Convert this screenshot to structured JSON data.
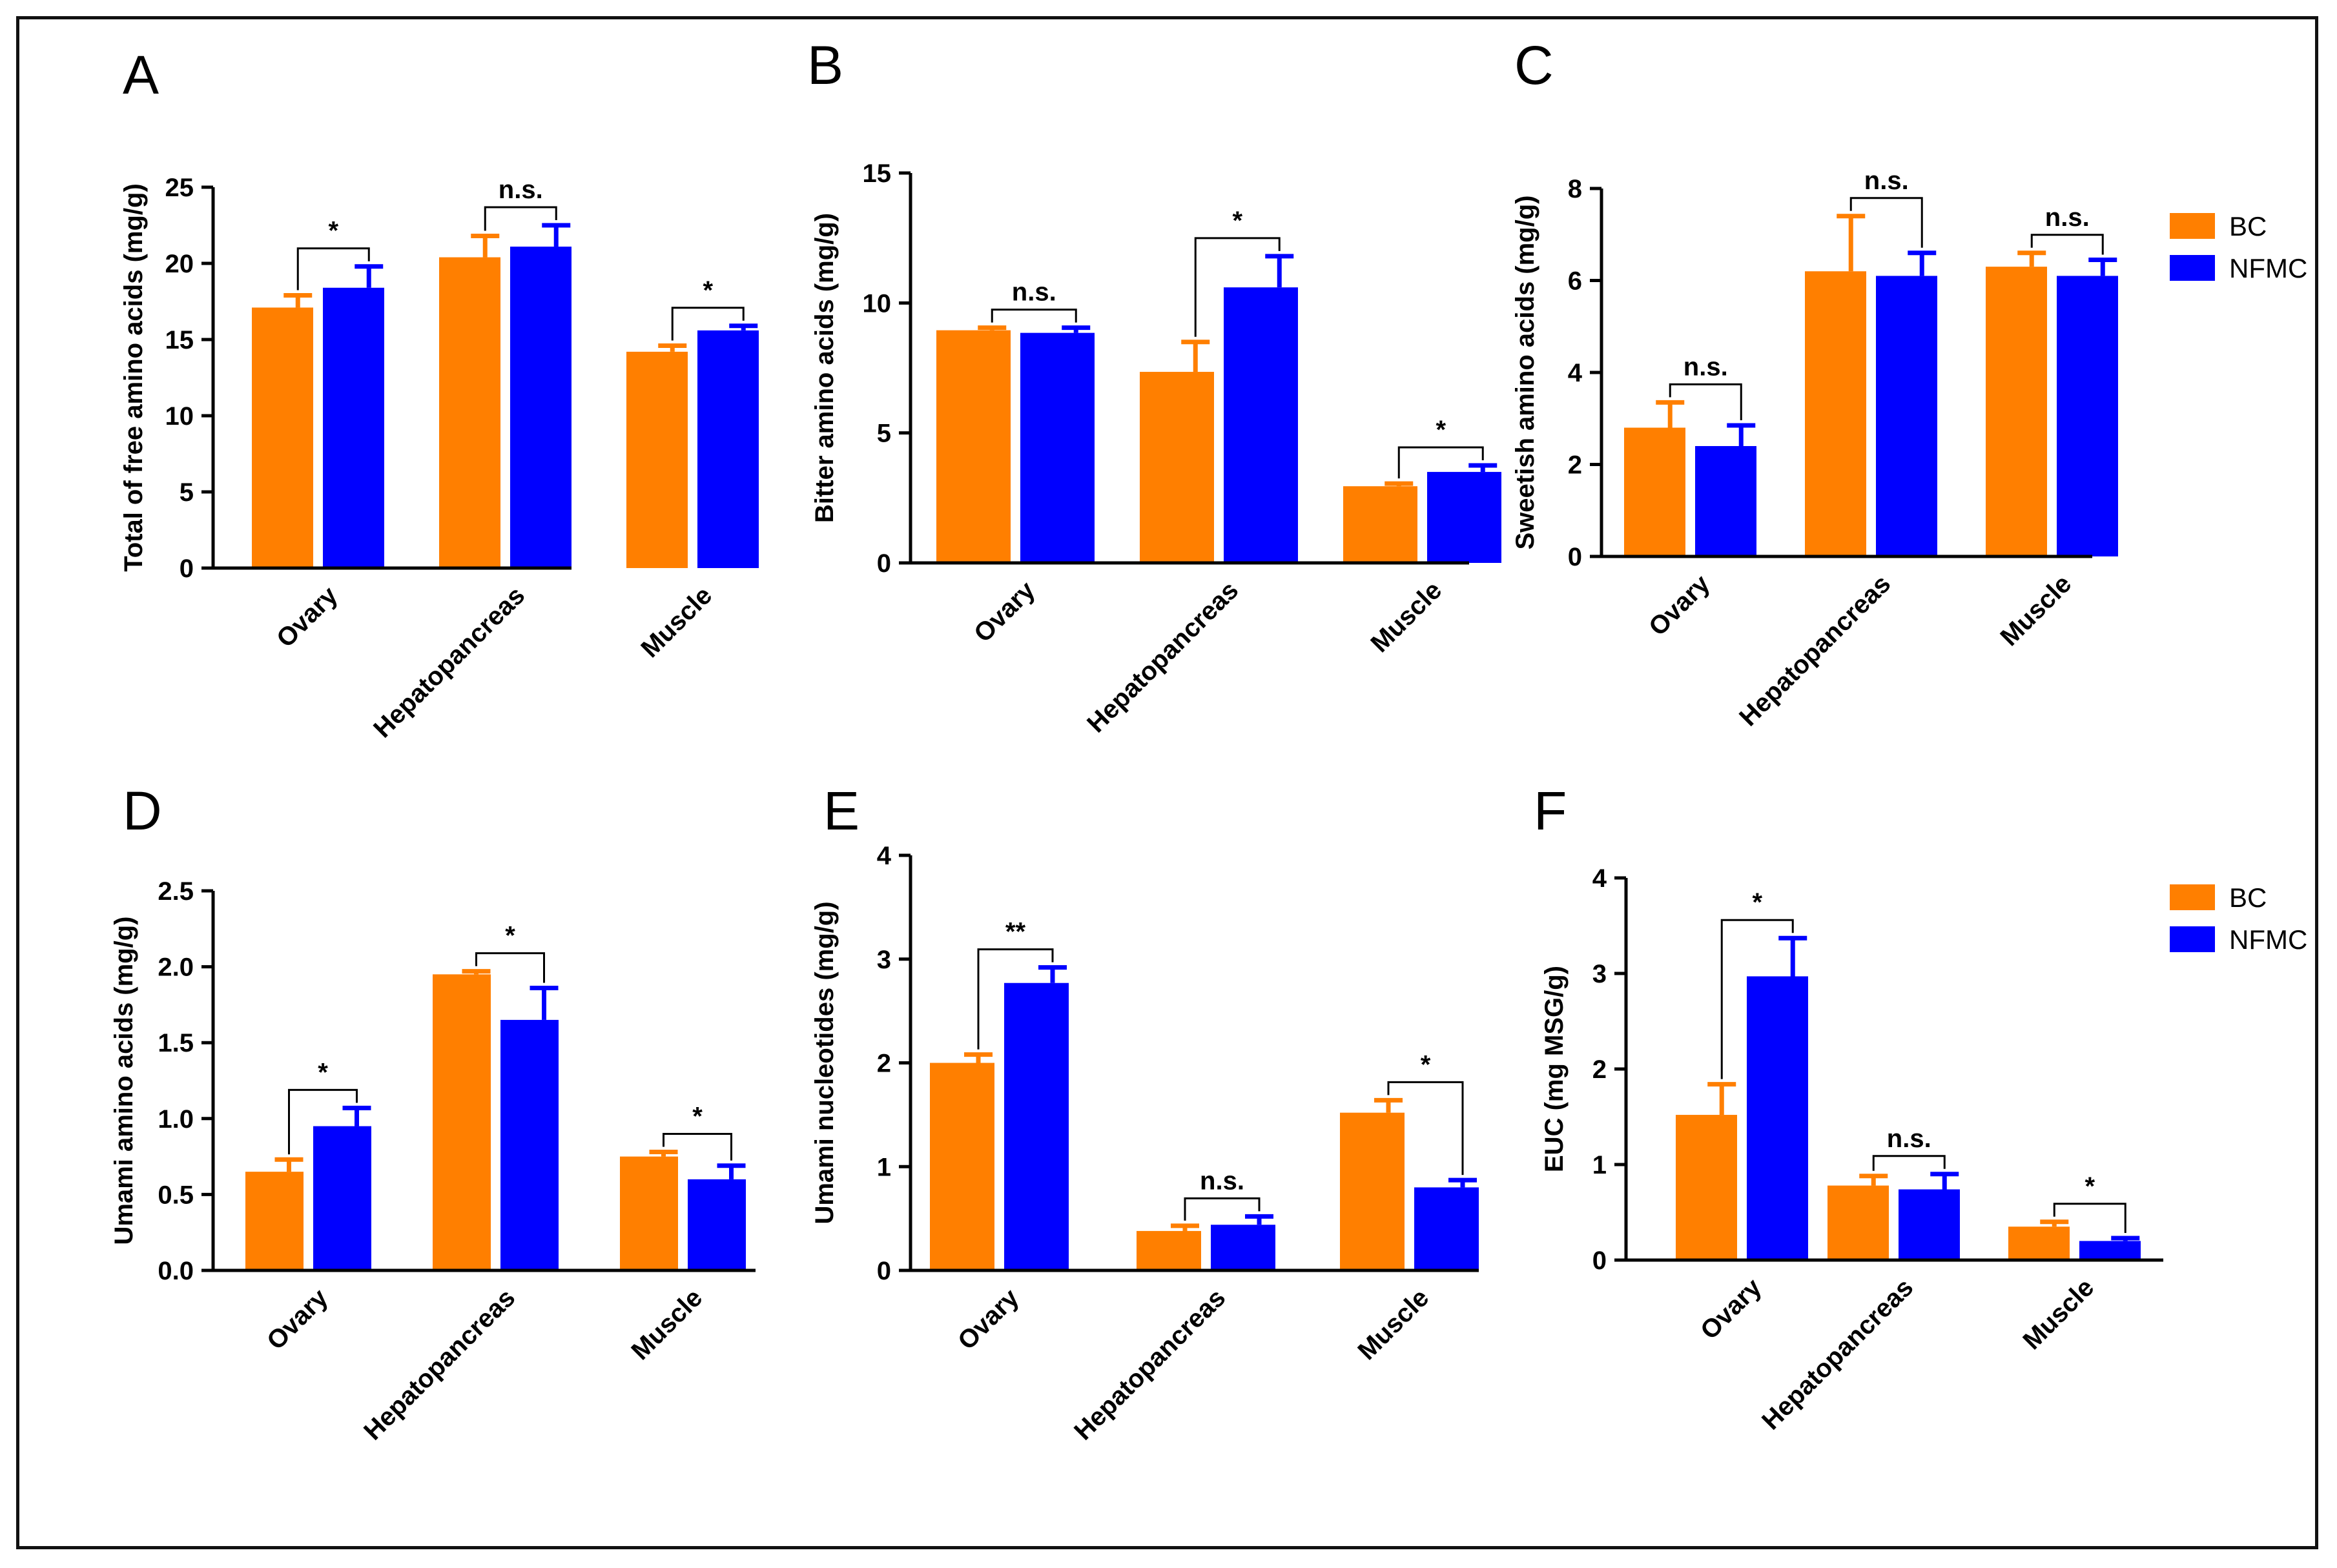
{
  "colors": {
    "BC": "#ff7f00",
    "NFMC": "#0000ff",
    "axis": "#000000"
  },
  "chart_data": [
    {
      "type": "bar",
      "panel": "A",
      "title": "",
      "ylabel": "Total of free amino acids (mg/g)",
      "xlabel": "",
      "categories": [
        "Ovary",
        "Hepatopancreas",
        "Muscle"
      ],
      "ylim": [
        0,
        25
      ],
      "yticks": [
        "0",
        "5",
        "10",
        "15",
        "20",
        "25"
      ],
      "ytick_values": [
        0,
        5,
        10,
        15,
        20,
        25
      ],
      "series": [
        {
          "name": "BC",
          "values": [
            17.1,
            20.4,
            14.2
          ],
          "errors": [
            0.8,
            1.4,
            0.4
          ]
        },
        {
          "name": "NFMC",
          "values": [
            18.4,
            21.1,
            15.6
          ],
          "errors": [
            1.4,
            1.4,
            0.3
          ]
        }
      ],
      "significance": [
        "*",
        "n.s.",
        "*"
      ]
    },
    {
      "type": "bar",
      "panel": "B",
      "title": "",
      "ylabel": "Bitter amino acids (mg/g)",
      "xlabel": "",
      "categories": [
        "Ovary",
        "Hepatopancreas",
        "Muscle"
      ],
      "ylim": [
        0,
        15
      ],
      "yticks": [
        "0",
        "5",
        "10",
        "15"
      ],
      "ytick_values": [
        0,
        5,
        10,
        15
      ],
      "series": [
        {
          "name": "BC",
          "values": [
            8.95,
            7.35,
            2.95
          ],
          "errors": [
            0.1,
            1.15,
            0.1
          ]
        },
        {
          "name": "NFMC",
          "values": [
            8.85,
            10.6,
            3.5
          ],
          "errors": [
            0.2,
            1.2,
            0.25
          ]
        }
      ],
      "significance": [
        "n.s.",
        "*",
        "*"
      ]
    },
    {
      "type": "bar",
      "panel": "C",
      "title": "",
      "ylabel": "Sweetish amino acids (mg/g)",
      "xlabel": "",
      "categories": [
        "Ovary",
        "Hepatopancreas",
        "Muscle"
      ],
      "ylim": [
        0,
        8
      ],
      "yticks": [
        "0",
        "2",
        "4",
        "6",
        "8"
      ],
      "ytick_values": [
        0,
        2,
        4,
        6,
        8
      ],
      "series": [
        {
          "name": "BC",
          "values": [
            2.8,
            6.2,
            6.3
          ],
          "errors": [
            0.55,
            1.2,
            0.3
          ]
        },
        {
          "name": "NFMC",
          "values": [
            2.4,
            6.1,
            6.1
          ],
          "errors": [
            0.45,
            0.5,
            0.35
          ]
        }
      ],
      "significance": [
        "n.s.",
        "n.s.",
        "n.s."
      ]
    },
    {
      "type": "bar",
      "panel": "D",
      "title": "",
      "ylabel": "Umami amino acids (mg/g)",
      "xlabel": "",
      "categories": [
        "Ovary",
        "Hepatopancreas",
        "Muscle"
      ],
      "ylim": [
        0,
        2.5
      ],
      "yticks": [
        "0.0",
        "0.5",
        "1.0",
        "1.5",
        "2.0",
        "2.5"
      ],
      "ytick_values": [
        0,
        0.5,
        1.0,
        1.5,
        2.0,
        2.5
      ],
      "series": [
        {
          "name": "BC",
          "values": [
            0.65,
            1.95,
            0.75
          ],
          "errors": [
            0.08,
            0.02,
            0.03
          ]
        },
        {
          "name": "NFMC",
          "values": [
            0.95,
            1.65,
            0.6
          ],
          "errors": [
            0.12,
            0.21,
            0.09
          ]
        }
      ],
      "significance": [
        "*",
        "*",
        "*"
      ]
    },
    {
      "type": "bar",
      "panel": "E",
      "title": "",
      "ylabel": "Umami nucleotides (mg/g)",
      "xlabel": "",
      "categories": [
        "Ovary",
        "Hepatopancreas",
        "Muscle"
      ],
      "ylim": [
        0,
        4
      ],
      "yticks": [
        "0",
        "1",
        "2",
        "3",
        "4"
      ],
      "ytick_values": [
        0,
        1,
        2,
        3,
        4
      ],
      "series": [
        {
          "name": "BC",
          "values": [
            2.0,
            0.38,
            1.52
          ],
          "errors": [
            0.08,
            0.05,
            0.12
          ]
        },
        {
          "name": "NFMC",
          "values": [
            2.77,
            0.44,
            0.8
          ],
          "errors": [
            0.15,
            0.08,
            0.07
          ]
        }
      ],
      "significance": [
        "**",
        "n.s.",
        "*"
      ]
    },
    {
      "type": "bar",
      "panel": "F",
      "title": "",
      "ylabel": "EUC (mg MSG/g)",
      "xlabel": "",
      "categories": [
        "Ovary",
        "Hepatopancreas",
        "Muscle"
      ],
      "ylim": [
        0,
        4
      ],
      "yticks": [
        "0",
        "1",
        "2",
        "3",
        "4"
      ],
      "ytick_values": [
        0,
        1,
        2,
        3,
        4
      ],
      "series": [
        {
          "name": "BC",
          "values": [
            1.52,
            0.78,
            0.35
          ],
          "errors": [
            0.32,
            0.1,
            0.05
          ]
        },
        {
          "name": "NFMC",
          "values": [
            2.97,
            0.74,
            0.2
          ],
          "errors": [
            0.4,
            0.16,
            0.03
          ]
        }
      ],
      "significance": [
        "*",
        "n.s.",
        "*"
      ]
    }
  ],
  "legends": [
    {
      "items": [
        "BC",
        "NFMC"
      ]
    },
    {
      "items": [
        "BC",
        "NFMC"
      ]
    }
  ]
}
